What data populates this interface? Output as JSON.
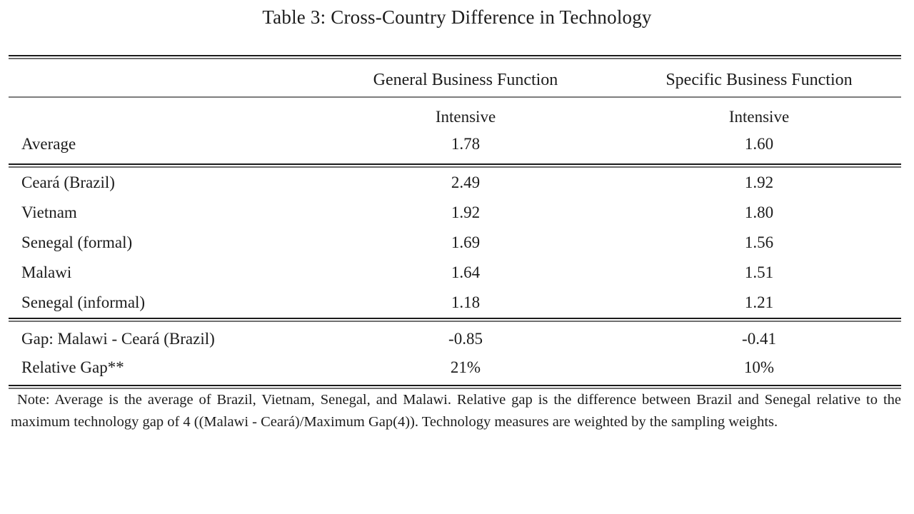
{
  "page": {
    "background_color": "#ffffff",
    "text_color": "#1c1c1c",
    "rule_dark_color": "#1b1b1b",
    "rule_gray_color": "#6f6f6f"
  },
  "table": {
    "title": "Table 3: Cross-Country Difference in Technology",
    "column_headers": [
      "General Business Function",
      "Specific Business Function"
    ],
    "subheaders": [
      "Intensive",
      "Intensive"
    ],
    "average_row": {
      "label": "Average",
      "values": [
        "1.78",
        "1.60"
      ]
    },
    "country_rows": [
      {
        "label": "Ceará (Brazil)",
        "values": [
          "2.49",
          "1.92"
        ]
      },
      {
        "label": "Vietnam",
        "values": [
          "1.92",
          "1.80"
        ]
      },
      {
        "label": "Senegal (formal)",
        "values": [
          "1.69",
          "1.56"
        ]
      },
      {
        "label": "Malawi",
        "values": [
          "1.64",
          "1.51"
        ]
      },
      {
        "label": "Senegal (informal)",
        "values": [
          "1.18",
          "1.21"
        ]
      }
    ],
    "gap_rows": [
      {
        "label": "Gap: Malawi - Ceará (Brazil)",
        "values": [
          "-0.85",
          "-0.41"
        ]
      },
      {
        "label": "Relative Gap**",
        "values": [
          "21%",
          "10%"
        ]
      }
    ],
    "note": "Note: Average is the average of Brazil, Vietnam, Senegal, and Malawi. Relative gap is the difference between Brazil and Senegal relative to the maximum technology gap of 4 ((Malawi - Ceará)/Maximum Gap(4)). Technology measures are weighted by the sampling weights."
  }
}
